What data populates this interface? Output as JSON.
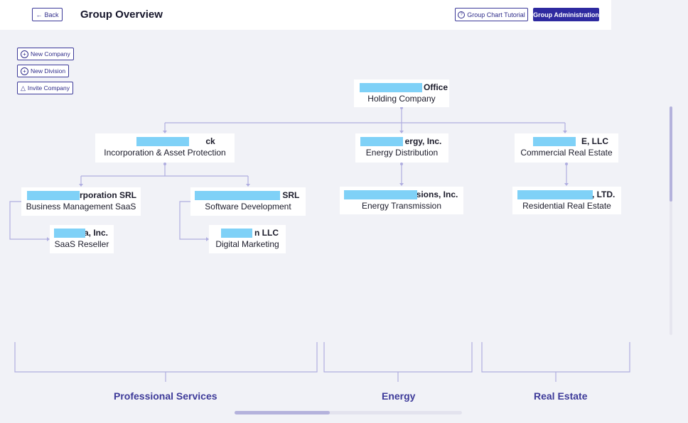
{
  "header": {
    "back_label": "Back",
    "title": "Group Overview",
    "tutorial_label": "Group Chart Tutorial",
    "admin_label": "Group Administration"
  },
  "actions": {
    "new_company": "New Company",
    "new_division": "New Division",
    "invite_company": "Invite Company"
  },
  "nodes": {
    "root": {
      "name_visible": "y Office",
      "desc": "Holding Company"
    },
    "inc_asset": {
      "name_visible": "ck",
      "desc": "Incorporation & Asset Protection"
    },
    "energy_inc": {
      "name_visible": "ergy, Inc.",
      "desc": "Energy Distribution"
    },
    "llc_realestate": {
      "name_visible": "E, LLC",
      "desc": "Commercial Real Estate"
    },
    "saas_srl": {
      "name_visible": "rporation SRL",
      "desc": "Business Management SaaS"
    },
    "software_srl": {
      "name_visible": "n SRL",
      "desc": "Software Development"
    },
    "transmission": {
      "name_visible": "sions, Inc.",
      "desc": "Energy Transmission"
    },
    "residential": {
      "name_visible": "l, LTD.",
      "desc": "Residential Real Estate"
    },
    "saas_reseller": {
      "name_visible": "a, Inc.",
      "desc": "SaaS Reseller"
    },
    "digital_marketing": {
      "name_visible": "n LLC",
      "desc": "Digital Marketing"
    }
  },
  "groups": {
    "professional": "Professional Services",
    "energy": "Energy",
    "real_estate": "Real Estate"
  },
  "colors": {
    "accent": "#2e2aa0",
    "connector": "#b0aee0",
    "redaction": "#7fd1f7"
  }
}
